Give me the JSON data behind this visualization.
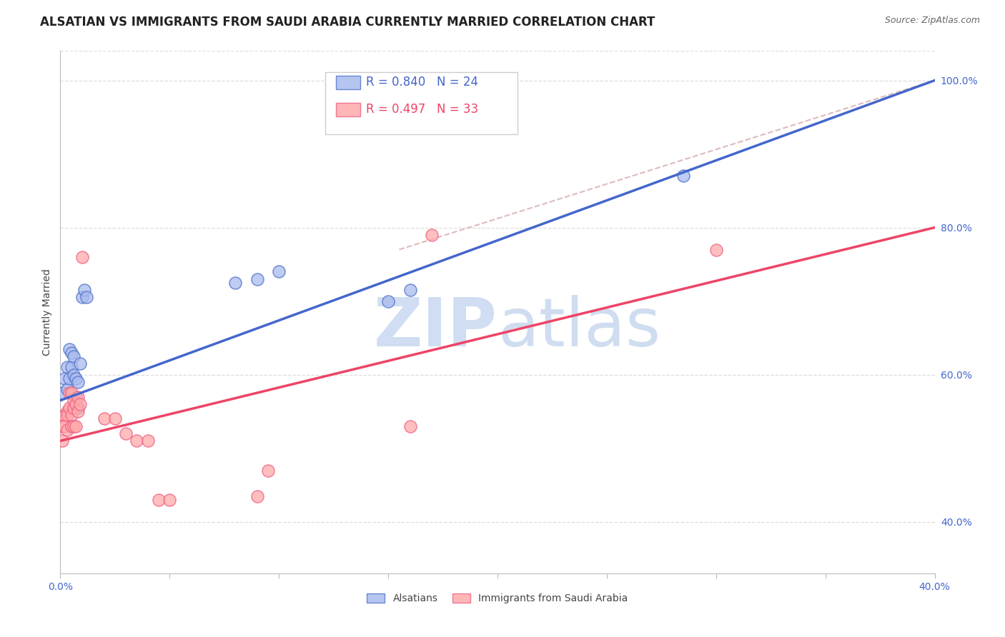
{
  "title": "ALSATIAN VS IMMIGRANTS FROM SAUDI ARABIA CURRENTLY MARRIED CORRELATION CHART",
  "source": "Source: ZipAtlas.com",
  "ylabel_label": "Currently Married",
  "xlim": [
    0.0,
    0.4
  ],
  "ylim": [
    0.33,
    1.04
  ],
  "xtick_positions": [
    0.0,
    0.05,
    0.1,
    0.15,
    0.2,
    0.25,
    0.3,
    0.35,
    0.4
  ],
  "xticklabels": [
    "0.0%",
    "",
    "",
    "",
    "",
    "",
    "",
    "",
    "40.0%"
  ],
  "ytick_positions": [
    0.4,
    0.6,
    0.8,
    1.0
  ],
  "yticklabels": [
    "40.0%",
    "60.0%",
    "80.0%",
    "100.0%"
  ],
  "blue_scatter_x": [
    0.001,
    0.002,
    0.003,
    0.003,
    0.004,
    0.004,
    0.005,
    0.005,
    0.006,
    0.006,
    0.007,
    0.007,
    0.008,
    0.008,
    0.009,
    0.01,
    0.011,
    0.012,
    0.08,
    0.09,
    0.1,
    0.15,
    0.16,
    0.285
  ],
  "blue_scatter_y": [
    0.575,
    0.595,
    0.58,
    0.61,
    0.595,
    0.635,
    0.63,
    0.61,
    0.6,
    0.625,
    0.57,
    0.595,
    0.59,
    0.555,
    0.615,
    0.705,
    0.715,
    0.705,
    0.725,
    0.73,
    0.74,
    0.7,
    0.715,
    0.87
  ],
  "pink_scatter_x": [
    0.001,
    0.001,
    0.002,
    0.002,
    0.003,
    0.003,
    0.003,
    0.004,
    0.004,
    0.005,
    0.005,
    0.005,
    0.006,
    0.006,
    0.006,
    0.007,
    0.007,
    0.008,
    0.008,
    0.009,
    0.01,
    0.02,
    0.025,
    0.03,
    0.035,
    0.04,
    0.045,
    0.05,
    0.09,
    0.095,
    0.16,
    0.17,
    0.3
  ],
  "pink_scatter_y": [
    0.51,
    0.53,
    0.545,
    0.53,
    0.525,
    0.55,
    0.545,
    0.555,
    0.575,
    0.575,
    0.545,
    0.53,
    0.555,
    0.53,
    0.565,
    0.56,
    0.53,
    0.55,
    0.57,
    0.56,
    0.76,
    0.54,
    0.54,
    0.52,
    0.51,
    0.51,
    0.43,
    0.43,
    0.435,
    0.47,
    0.53,
    0.79,
    0.77
  ],
  "blue_line_x": [
    0.0,
    0.4
  ],
  "blue_line_y": [
    0.565,
    1.0
  ],
  "pink_line_x": [
    0.0,
    0.4
  ],
  "pink_line_y": [
    0.51,
    0.8
  ],
  "dashed_line_x": [
    0.155,
    0.4
  ],
  "dashed_line_y": [
    0.77,
    1.0
  ],
  "blue_color": "#AABBEE",
  "pink_color": "#FFAAAA",
  "blue_edge_color": "#5577CC",
  "pink_edge_color": "#EE6688",
  "blue_line_color": "#4466CC",
  "pink_line_color": "#EE4466",
  "dashed_color": "#DDBBBB",
  "legend_blue_r": "R = 0.840",
  "legend_blue_n": "N = 24",
  "legend_pink_r": "R = 0.497",
  "legend_pink_n": "N = 33",
  "watermark_zip": "ZIP",
  "watermark_atlas": "atlas",
  "label_alsatians": "Alsatians",
  "label_immigrants": "Immigrants from Saudi Arabia",
  "grid_color": "#DDDDDD",
  "background_color": "#FFFFFF",
  "title_fontsize": 12,
  "axis_label_fontsize": 10,
  "tick_fontsize": 10,
  "legend_fontsize": 12,
  "source_fontsize": 9
}
